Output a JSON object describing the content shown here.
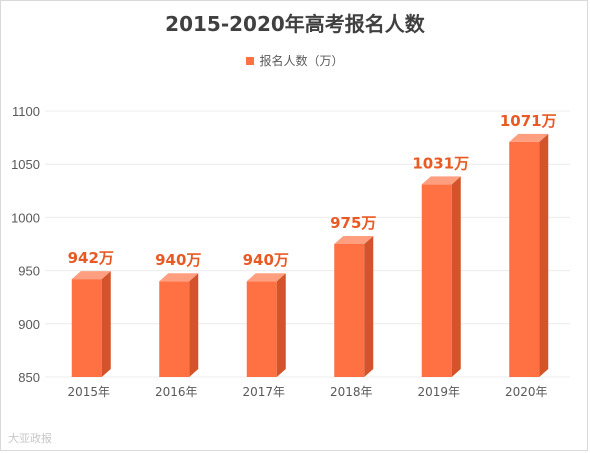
{
  "title": "2015-2020年高考报名人数",
  "legend_label": "报名人数（万）",
  "watermark": "大亚政报",
  "colors": {
    "bar_front": "#ff7043",
    "bar_side": "#d4532b",
    "bar_top": "#ff9f80",
    "data_label": "#e85a23",
    "grid": "#ececec",
    "axis_text": "#595959"
  },
  "chart_data": {
    "type": "bar",
    "title": "2015-2020年高考报名人数",
    "categories": [
      "2015年",
      "2016年",
      "2017年",
      "2018年",
      "2019年",
      "2020年"
    ],
    "series": [
      {
        "name": "报名人数（万）",
        "values": [
          942,
          940,
          940,
          975,
          1031,
          1071
        ],
        "labels": [
          "942万",
          "940万",
          "940万",
          "975万",
          "1031万",
          "1071万"
        ]
      }
    ],
    "ylim": [
      850,
      1100
    ],
    "yticks": [
      850,
      900,
      950,
      1000,
      1050,
      1100
    ],
    "grid": true,
    "legend": "top-center",
    "xlabel": "",
    "ylabel": ""
  }
}
